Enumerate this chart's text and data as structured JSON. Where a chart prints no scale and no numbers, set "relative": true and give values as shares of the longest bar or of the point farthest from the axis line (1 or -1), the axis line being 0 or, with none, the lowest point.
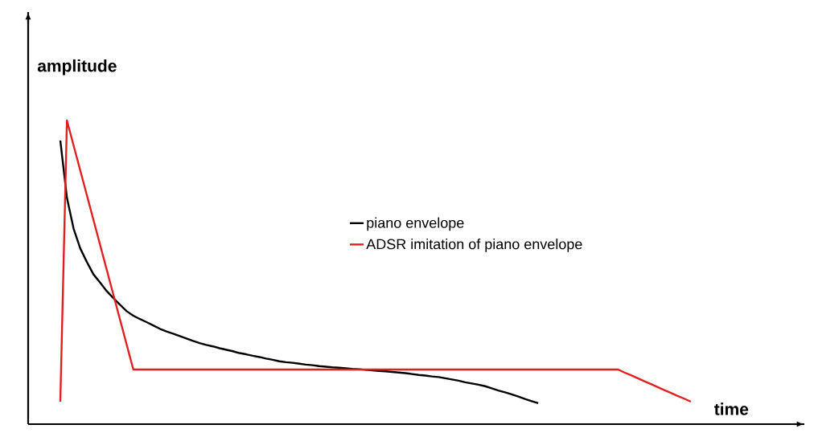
{
  "chart_data": {
    "type": "line",
    "relative": true,
    "xlabel": "time",
    "ylabel": "amplitude",
    "legend": "right",
    "marker": "none",
    "line_style": "solid",
    "categories": [
      null,
      null,
      null,
      null,
      null,
      null,
      null,
      null,
      null,
      null,
      null,
      null,
      null,
      null,
      null,
      null,
      null,
      null,
      null,
      null,
      null,
      null,
      null,
      null,
      null,
      null,
      null,
      null,
      null,
      null,
      null,
      null,
      null,
      null,
      null,
      null,
      null,
      null,
      null,
      null,
      null,
      null,
      null,
      null,
      null,
      null,
      null,
      null,
      null,
      null,
      null,
      null,
      null,
      null,
      null,
      null,
      null,
      null,
      null,
      null,
      null,
      null,
      null,
      null,
      null,
      null,
      null,
      null,
      null,
      null,
      null,
      null,
      null,
      null,
      null,
      null,
      null,
      null,
      null,
      null,
      null,
      null,
      null,
      null,
      null,
      null,
      null,
      null,
      null,
      null,
      null,
      null,
      null,
      null,
      null,
      null
    ],
    "series": [
      {
        "name": "piano envelope",
        "color": "#000000",
        "values": [
          0.934,
          0.745,
          0.644,
          0.579,
          0.534,
          0.493,
          0.466,
          0.438,
          0.415,
          0.393,
          0.372,
          0.357,
          0.346,
          0.336,
          0.325,
          0.314,
          0.305,
          0.298,
          0.29,
          0.282,
          0.274,
          0.267,
          0.261,
          0.256,
          0.25,
          0.245,
          0.24,
          0.234,
          0.23,
          0.225,
          0.221,
          0.216,
          0.212,
          0.207,
          0.204,
          0.202,
          0.199,
          0.196,
          0.194,
          0.191,
          0.189,
          0.187,
          0.186,
          0.184,
          0.182,
          0.181,
          0.179,
          0.177,
          0.175,
          0.174,
          0.172,
          0.17,
          0.168,
          0.165,
          0.162,
          0.16,
          0.157,
          0.155,
          0.151,
          0.147,
          0.143,
          0.138,
          0.134,
          0.13,
          0.125,
          0.118,
          0.111,
          0.105,
          0.098,
          0.091,
          0.083,
          0.076,
          0.069,
          null,
          null,
          null,
          null,
          null,
          null,
          null,
          null,
          null,
          null,
          null,
          null,
          null,
          null,
          null,
          null,
          null,
          null,
          null,
          null,
          null,
          null,
          null
        ]
      },
      {
        "name": "ADSR imitation of piano envelope",
        "color": "#e02020",
        "values": [
          0.074,
          1.0,
          0.918,
          0.836,
          0.754,
          0.672,
          0.59,
          0.508,
          0.426,
          0.344,
          0.262,
          0.18,
          0.18,
          0.18,
          0.18,
          0.18,
          0.18,
          0.18,
          0.18,
          0.18,
          0.18,
          0.18,
          0.18,
          0.18,
          0.18,
          0.18,
          0.18,
          0.18,
          0.18,
          0.18,
          0.18,
          0.18,
          0.18,
          0.18,
          0.18,
          0.18,
          0.18,
          0.18,
          0.18,
          0.18,
          0.18,
          0.18,
          0.18,
          0.18,
          0.18,
          0.18,
          0.18,
          0.18,
          0.18,
          0.18,
          0.18,
          0.18,
          0.18,
          0.18,
          0.18,
          0.18,
          0.18,
          0.18,
          0.18,
          0.18,
          0.18,
          0.18,
          0.18,
          0.18,
          0.18,
          0.18,
          0.18,
          0.18,
          0.18,
          0.18,
          0.18,
          0.18,
          0.18,
          0.18,
          0.18,
          0.18,
          0.18,
          0.18,
          0.18,
          0.18,
          0.18,
          0.18,
          0.18,
          0.18,
          0.18,
          0.17,
          0.161,
          0.151,
          0.141,
          0.132,
          0.122,
          0.112,
          0.103,
          0.093,
          0.084,
          0.074
        ]
      }
    ]
  }
}
